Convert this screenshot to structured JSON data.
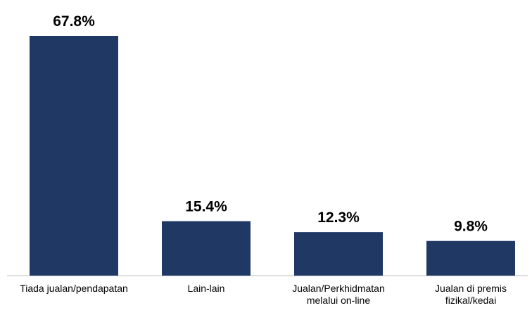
{
  "chart_data": {
    "type": "bar",
    "categories": [
      "Tiada jualan/pendapatan",
      "Lain-lain",
      "Jualan/Perkhidmatan melalui on-line",
      "Jualan di premis fizikal/kedai"
    ],
    "values": [
      67.8,
      15.4,
      12.3,
      9.8
    ],
    "value_labels": [
      "67.8%",
      "15.4%",
      "12.3%",
      "9.8%"
    ],
    "color": "#203864"
  }
}
